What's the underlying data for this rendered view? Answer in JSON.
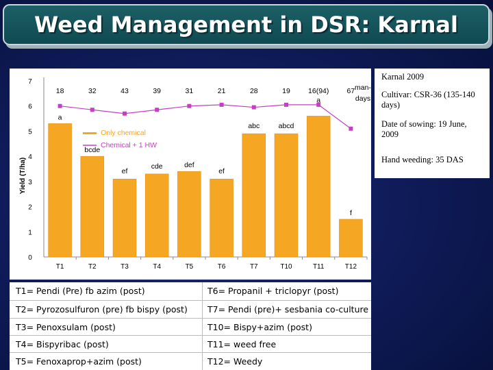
{
  "slide": {
    "title": "Weed Management in DSR: Karnal"
  },
  "info": {
    "lines": [
      "Karnal 2009",
      "Cultivar: CSR-36 (135-140 days)",
      "Date of sowing: 19 June, 2009",
      "Hand weeding: 35 DAS"
    ]
  },
  "chart_data": {
    "type": "bar",
    "categories": [
      "T1",
      "T2",
      "T3",
      "T4",
      "T5",
      "T6",
      "T7",
      "T10",
      "T11",
      "T12"
    ],
    "values": [
      5.3,
      4.0,
      3.1,
      3.3,
      3.4,
      3.1,
      4.9,
      4.9,
      5.6,
      1.5
    ],
    "bar_labels": [
      "a",
      "bcde",
      "ef",
      "cde",
      "def",
      "ef",
      "abc",
      "abcd",
      "a",
      "f"
    ],
    "man_days": [
      "18",
      "32",
      "43",
      "39",
      "31",
      "21",
      "28",
      "19",
      "16(94)",
      "67"
    ],
    "man_days_series_values": [
      6.0,
      5.85,
      5.7,
      5.85,
      6.0,
      6.05,
      5.95,
      6.05,
      6.05,
      5.1
    ],
    "man_days_unit": "man-days",
    "ylabel": "Yield (T/ha)",
    "ylim": [
      0,
      7
    ],
    "yticks": [
      0,
      1,
      2,
      3,
      4,
      5,
      6,
      7
    ],
    "legend": [
      {
        "name": "Only chemical",
        "color": "#f5a623"
      },
      {
        "name": "Chemical + 1 HW",
        "color": "#c53fc2"
      }
    ],
    "colors": {
      "bar": "#f5a623",
      "line": "#c53fc2"
    }
  },
  "treatments": [
    [
      "T1= Pendi (Pre) fb azim (post)",
      "T6= Propanil + triclopyr (post)"
    ],
    [
      "T2= Pyrozosulfuron (pre) fb bispy (post)",
      "T7= Pendi (pre)+ sesbania co-culture"
    ],
    [
      "T3= Penoxsulam (post)",
      "T10= Bispy+azim (post)"
    ],
    [
      "T4= Bispyribac (post)",
      "T11= weed free"
    ],
    [
      "T5= Fenoxaprop+azim (post)",
      "T12= Weedy"
    ]
  ]
}
